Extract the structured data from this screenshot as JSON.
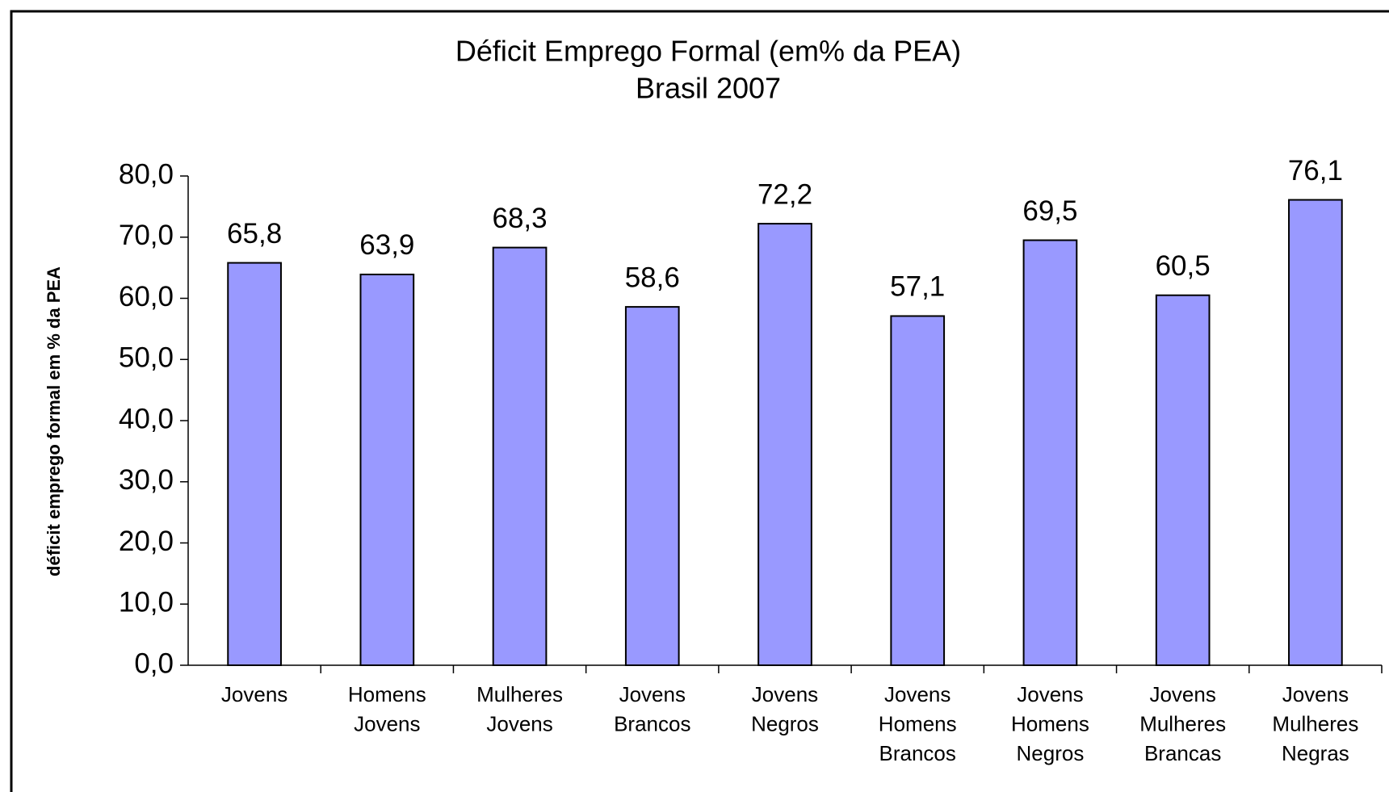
{
  "chart_data": {
    "type": "bar",
    "title": "Déficit Emprego Formal (em% da PEA)",
    "subtitle": "Brasil 2007",
    "y_label": "déficit emprego formal em % da PEA",
    "categories": [
      "Jovens",
      "Homens Jovens",
      "Mulheres Jovens",
      "Jovens Brancos",
      "Jovens Negros",
      "Jovens Homens Brancos",
      "Jovens Homens Negros",
      "Jovens Mulheres Brancas",
      "Jovens Mulheres Negras"
    ],
    "values": [
      65.8,
      63.9,
      68.3,
      58.6,
      72.2,
      57.1,
      69.5,
      60.5,
      76.1
    ],
    "value_labels": [
      "65,8",
      "63,9",
      "68,3",
      "58,6",
      "72,2",
      "57,1",
      "69,5",
      "60,5",
      "76,1"
    ],
    "color": "#9999ff",
    "ylim": [
      0,
      80
    ],
    "yticks": [
      {
        "value": 0,
        "label": "0,0"
      },
      {
        "value": 10,
        "label": "10,0"
      },
      {
        "value": 20,
        "label": "20,0"
      },
      {
        "value": 30,
        "label": "30,0"
      },
      {
        "value": 40,
        "label": "40,0"
      },
      {
        "value": 50,
        "label": "50,0"
      },
      {
        "value": 60,
        "label": "60,0"
      },
      {
        "value": 70,
        "label": "70,0"
      },
      {
        "value": 80,
        "label": "80,0"
      }
    ],
    "grid": false
  }
}
